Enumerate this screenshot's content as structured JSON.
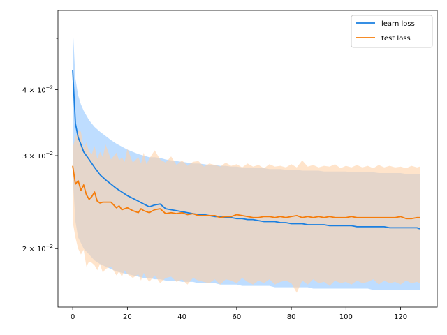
{
  "chart_data": {
    "type": "line",
    "title": "",
    "xlabel": "",
    "ylabel": "",
    "yscale": "log",
    "xlim": [
      -5.4,
      133.4
    ],
    "ylim": [
      0.0155,
      0.0565
    ],
    "xticks": [
      0,
      20,
      40,
      60,
      80,
      100,
      120
    ],
    "yticks": [
      {
        "value": 0.02,
        "mantissa": "2",
        "label": "2 × 10",
        "exponent": "−2"
      },
      {
        "value": 0.03,
        "mantissa": "3",
        "label": "3 × 10",
        "exponent": "−2"
      },
      {
        "value": 0.04,
        "mantissa": "4",
        "label": "4 × 10",
        "exponent": "−2"
      }
    ],
    "minor_yticks": [
      0.05
    ],
    "grid": false,
    "legend_position": "top-right",
    "series": [
      {
        "name": "learn loss",
        "color": "#1f77b4",
        "line_color": "#1a7fe0",
        "fill_color": "#a8d2ff",
        "x": [
          0,
          1,
          2,
          3,
          4,
          6,
          8,
          10,
          12,
          14,
          16,
          18,
          20,
          22,
          24,
          26,
          28,
          30,
          32,
          34,
          36,
          38,
          40,
          42,
          44,
          46,
          48,
          50,
          52,
          54,
          56,
          58,
          60,
          62,
          64,
          66,
          68,
          70,
          72,
          74,
          76,
          78,
          80,
          82,
          84,
          86,
          88,
          90,
          92,
          94,
          96,
          98,
          100,
          102,
          104,
          106,
          108,
          110,
          112,
          114,
          116,
          118,
          120,
          122,
          124,
          126,
          127
        ],
        "y": [
          0.0435,
          0.0345,
          0.0325,
          0.0315,
          0.0305,
          0.0295,
          0.0285,
          0.0276,
          0.027,
          0.0265,
          0.026,
          0.0256,
          0.0252,
          0.0249,
          0.0246,
          0.0243,
          0.024,
          0.0242,
          0.0243,
          0.0238,
          0.0237,
          0.0236,
          0.0235,
          0.0234,
          0.0233,
          0.0232,
          0.0232,
          0.0231,
          0.023,
          0.023,
          0.0229,
          0.0229,
          0.0228,
          0.0228,
          0.0227,
          0.0227,
          0.0226,
          0.0225,
          0.0225,
          0.0225,
          0.0224,
          0.0224,
          0.0223,
          0.0223,
          0.0223,
          0.0222,
          0.0222,
          0.0222,
          0.0222,
          0.0221,
          0.0221,
          0.0221,
          0.0221,
          0.0221,
          0.022,
          0.022,
          0.022,
          0.022,
          0.022,
          0.022,
          0.0219,
          0.0219,
          0.0219,
          0.0219,
          0.0219,
          0.0219,
          0.0218
        ],
        "lower": [
          0.0275,
          0.0225,
          0.021,
          0.0205,
          0.02,
          0.0195,
          0.019,
          0.0187,
          0.0185,
          0.0183,
          0.0181,
          0.018,
          0.0179,
          0.0178,
          0.0177,
          0.0176,
          0.0176,
          0.0175,
          0.0175,
          0.0174,
          0.0174,
          0.0174,
          0.0173,
          0.0173,
          0.0173,
          0.0172,
          0.0172,
          0.0172,
          0.0172,
          0.0171,
          0.0171,
          0.0171,
          0.0171,
          0.017,
          0.017,
          0.017,
          0.017,
          0.017,
          0.017,
          0.0169,
          0.0169,
          0.0169,
          0.0169,
          0.0169,
          0.0169,
          0.0169,
          0.0168,
          0.0168,
          0.0168,
          0.0168,
          0.0168,
          0.0168,
          0.0168,
          0.0168,
          0.0168,
          0.0168,
          0.0168,
          0.0167,
          0.0167,
          0.0167,
          0.0167,
          0.0167,
          0.0167,
          0.0167,
          0.0167,
          0.0167,
          0.0167
        ],
        "upper": [
          0.053,
          0.042,
          0.039,
          0.0375,
          0.0365,
          0.035,
          0.034,
          0.0333,
          0.0327,
          0.0321,
          0.0316,
          0.0312,
          0.0308,
          0.0305,
          0.0302,
          0.03,
          0.0298,
          0.0298,
          0.0297,
          0.0295,
          0.0294,
          0.0293,
          0.0292,
          0.0291,
          0.029,
          0.029,
          0.0289,
          0.0288,
          0.0288,
          0.0287,
          0.0287,
          0.0286,
          0.0286,
          0.0285,
          0.0285,
          0.0285,
          0.0284,
          0.0284,
          0.0283,
          0.0283,
          0.0283,
          0.0282,
          0.0282,
          0.0282,
          0.0281,
          0.0281,
          0.0281,
          0.0281,
          0.028,
          0.028,
          0.028,
          0.028,
          0.028,
          0.0279,
          0.0279,
          0.0279,
          0.0279,
          0.0279,
          0.0278,
          0.0278,
          0.0278,
          0.0278,
          0.0278,
          0.0277,
          0.0277,
          0.0277,
          0.0277
        ]
      },
      {
        "name": "test loss",
        "color": "#ff7f0e",
        "line_color": "#f57c0a",
        "fill_color": "#ffd2a8",
        "x": [
          0,
          1,
          2,
          3,
          4,
          5,
          6,
          7,
          8,
          9,
          10,
          11,
          12,
          14,
          16,
          17,
          18,
          19,
          20,
          22,
          24,
          25,
          26,
          27,
          28,
          30,
          32,
          34,
          36,
          38,
          40,
          42,
          44,
          46,
          48,
          50,
          52,
          54,
          56,
          58,
          60,
          62,
          64,
          66,
          68,
          70,
          72,
          74,
          76,
          78,
          80,
          82,
          84,
          86,
          88,
          90,
          92,
          94,
          96,
          98,
          100,
          102,
          104,
          106,
          108,
          110,
          112,
          114,
          116,
          118,
          120,
          122,
          124,
          126,
          127
        ],
        "y": [
          0.0287,
          0.0265,
          0.0269,
          0.0258,
          0.0264,
          0.0253,
          0.0248,
          0.0251,
          0.0256,
          0.0246,
          0.0244,
          0.0245,
          0.0245,
          0.0245,
          0.0239,
          0.0241,
          0.0237,
          0.0238,
          0.0239,
          0.0236,
          0.0234,
          0.0238,
          0.0236,
          0.0235,
          0.0234,
          0.0237,
          0.0238,
          0.0233,
          0.0234,
          0.0233,
          0.0234,
          0.0232,
          0.0233,
          0.0231,
          0.0231,
          0.0231,
          0.0231,
          0.0229,
          0.023,
          0.023,
          0.0232,
          0.0231,
          0.023,
          0.0229,
          0.0229,
          0.023,
          0.023,
          0.0229,
          0.023,
          0.0229,
          0.023,
          0.0231,
          0.0229,
          0.023,
          0.0229,
          0.023,
          0.0229,
          0.023,
          0.0229,
          0.0229,
          0.0229,
          0.023,
          0.0229,
          0.0229,
          0.0229,
          0.0229,
          0.0229,
          0.0229,
          0.0229,
          0.0229,
          0.023,
          0.0228,
          0.0228,
          0.0229,
          0.0229
        ],
        "lower": [
          0.0225,
          0.021,
          0.02,
          0.0195,
          0.0199,
          0.0185,
          0.0189,
          0.0188,
          0.0186,
          0.0182,
          0.0187,
          0.018,
          0.0183,
          0.0185,
          0.0178,
          0.0181,
          0.0177,
          0.0182,
          0.0179,
          0.0176,
          0.0179,
          0.0174,
          0.018,
          0.0176,
          0.0173,
          0.0178,
          0.0172,
          0.0176,
          0.0177,
          0.0173,
          0.0175,
          0.0171,
          0.0176,
          0.0174,
          0.0173,
          0.0172,
          0.0175,
          0.0171,
          0.0175,
          0.0174,
          0.0172,
          0.0176,
          0.0173,
          0.0171,
          0.0174,
          0.0172,
          0.0175,
          0.0171,
          0.0173,
          0.0174,
          0.0172,
          0.0165,
          0.0174,
          0.0171,
          0.0175,
          0.0172,
          0.0173,
          0.017,
          0.0174,
          0.0172,
          0.0173,
          0.0171,
          0.0174,
          0.0172,
          0.0173,
          0.0175,
          0.0171,
          0.0174,
          0.0172,
          0.0173,
          0.0171,
          0.0174,
          0.0172,
          0.0173,
          0.0172
        ],
        "upper": [
          0.031,
          0.0325,
          0.0335,
          0.0333,
          0.031,
          0.0318,
          0.0305,
          0.0302,
          0.0313,
          0.0296,
          0.0305,
          0.0298,
          0.0315,
          0.0295,
          0.0304,
          0.0294,
          0.0298,
          0.0292,
          0.0309,
          0.0291,
          0.0298,
          0.029,
          0.0304,
          0.0289,
          0.0296,
          0.0307,
          0.0295,
          0.0291,
          0.0299,
          0.0288,
          0.0294,
          0.0287,
          0.0292,
          0.0293,
          0.0286,
          0.029,
          0.0288,
          0.0286,
          0.0291,
          0.0287,
          0.0289,
          0.0285,
          0.029,
          0.0286,
          0.0288,
          0.0284,
          0.0289,
          0.0286,
          0.0287,
          0.0285,
          0.0289,
          0.0285,
          0.0294,
          0.0286,
          0.0288,
          0.0285,
          0.0287,
          0.0286,
          0.0289,
          0.0284,
          0.0287,
          0.0285,
          0.0288,
          0.0285,
          0.0287,
          0.0284,
          0.0288,
          0.0285,
          0.0287,
          0.0285,
          0.0286,
          0.0284,
          0.0287,
          0.0285,
          0.0286
        ]
      }
    ]
  }
}
